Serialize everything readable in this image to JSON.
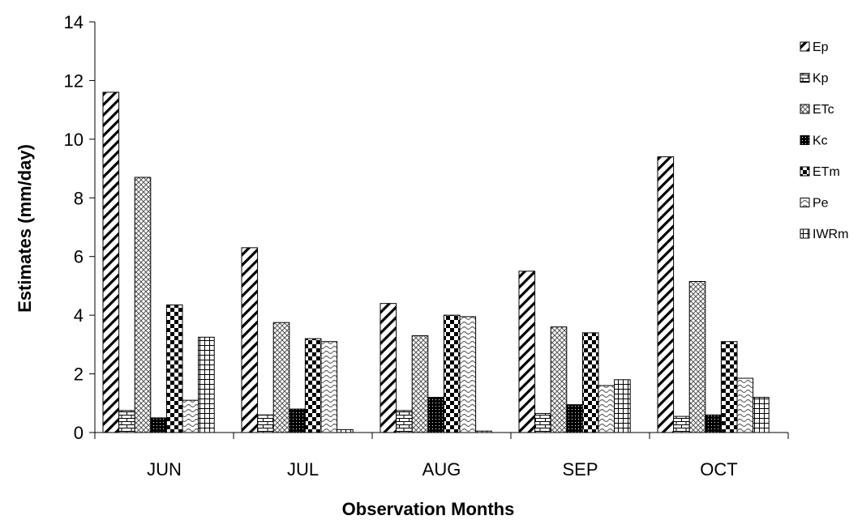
{
  "chart_data": {
    "type": "bar",
    "title": "",
    "xlabel": "Observation Months",
    "ylabel": "Estimates (mm/day)",
    "ylim": [
      0,
      14
    ],
    "yticks": [
      0,
      2,
      4,
      6,
      8,
      10,
      12,
      14
    ],
    "grid": false,
    "legend_position": "right",
    "categories": [
      "JUN",
      "JUL",
      "AUG",
      "SEP",
      "OCT"
    ],
    "series": [
      {
        "name": "Ep",
        "pattern": "diagonal-hatch",
        "values": [
          11.6,
          6.3,
          4.4,
          5.5,
          9.4
        ]
      },
      {
        "name": "Kp",
        "pattern": "brick",
        "values": [
          0.75,
          0.6,
          0.75,
          0.65,
          0.55
        ]
      },
      {
        "name": "ETc",
        "pattern": "crosshatch",
        "values": [
          8.7,
          3.75,
          3.3,
          3.6,
          5.15
        ]
      },
      {
        "name": "Kc",
        "pattern": "dark-dots",
        "values": [
          0.5,
          0.8,
          1.2,
          0.95,
          0.6
        ]
      },
      {
        "name": "ETm",
        "pattern": "checker",
        "values": [
          4.35,
          3.2,
          4.0,
          3.4,
          3.1
        ]
      },
      {
        "name": "Pe",
        "pattern": "wave",
        "values": [
          1.1,
          3.1,
          3.95,
          1.6,
          1.85
        ]
      },
      {
        "name": "IWRm",
        "pattern": "grid",
        "values": [
          3.25,
          0.1,
          0.05,
          1.8,
          1.2
        ]
      }
    ]
  }
}
